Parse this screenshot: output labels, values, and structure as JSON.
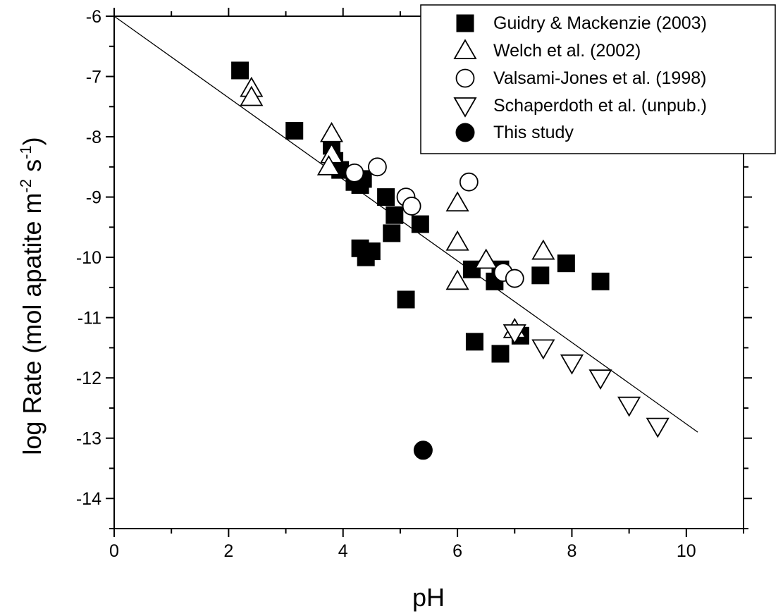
{
  "chart_data": {
    "type": "scatter",
    "title": "",
    "xlabel": "pH",
    "ylabel_parts": [
      "log Rate (mol apatite m",
      "-2",
      " s",
      "-1",
      ")"
    ],
    "xlim": [
      0,
      11
    ],
    "ylim": [
      -14.5,
      -6
    ],
    "x_ticks": [
      0,
      2,
      4,
      6,
      8,
      10
    ],
    "x_tick_labels": [
      "0",
      "2",
      "4",
      "6",
      "8",
      "10"
    ],
    "y_ticks": [
      -6,
      -7,
      -8,
      -9,
      -10,
      -11,
      -12,
      -13,
      -14
    ],
    "y_tick_labels": [
      "-6",
      "-7",
      "-8",
      "-9",
      "-10",
      "-11",
      "-12",
      "-13",
      "-14"
    ],
    "grid": false,
    "legend_position": "top-right",
    "series": [
      {
        "name": "Guidry & Mackenzie (2003)",
        "marker": "filled-square",
        "color": "#000000",
        "points": [
          [
            2.2,
            -6.9
          ],
          [
            3.15,
            -7.9
          ],
          [
            3.8,
            -8.15
          ],
          [
            3.85,
            -8.4
          ],
          [
            3.95,
            -8.55
          ],
          [
            4.2,
            -8.75
          ],
          [
            4.3,
            -8.8
          ],
          [
            4.35,
            -8.7
          ],
          [
            4.75,
            -9.0
          ],
          [
            4.9,
            -9.3
          ],
          [
            4.85,
            -9.6
          ],
          [
            4.3,
            -9.85
          ],
          [
            4.5,
            -9.9
          ],
          [
            4.4,
            -10.0
          ],
          [
            5.35,
            -9.45
          ],
          [
            5.1,
            -10.7
          ],
          [
            6.25,
            -10.2
          ],
          [
            6.65,
            -10.4
          ],
          [
            6.75,
            -10.2
          ],
          [
            7.45,
            -10.3
          ],
          [
            7.9,
            -10.1
          ],
          [
            8.5,
            -10.4
          ],
          [
            6.3,
            -11.4
          ],
          [
            6.75,
            -11.6
          ],
          [
            7.1,
            -11.3
          ]
        ]
      },
      {
        "name": "Welch et al. (2002)",
        "marker": "open-triangle-up",
        "color": "#000000",
        "points": [
          [
            2.4,
            -7.2
          ],
          [
            2.4,
            -7.35
          ],
          [
            3.8,
            -7.95
          ],
          [
            3.8,
            -8.3
          ],
          [
            3.75,
            -8.5
          ],
          [
            6.0,
            -9.1
          ],
          [
            6.0,
            -9.75
          ],
          [
            6.0,
            -10.4
          ],
          [
            6.5,
            -10.05
          ],
          [
            7.5,
            -9.9
          ],
          [
            7.0,
            -11.2
          ]
        ]
      },
      {
        "name": "Valsami-Jones et al. (1998)",
        "marker": "open-circle",
        "color": "#000000",
        "points": [
          [
            4.2,
            -8.6
          ],
          [
            4.6,
            -8.5
          ],
          [
            5.1,
            -9.0
          ],
          [
            5.2,
            -9.15
          ],
          [
            6.2,
            -8.75
          ],
          [
            6.8,
            -10.25
          ],
          [
            7.0,
            -10.35
          ]
        ]
      },
      {
        "name": "Schaperdoth et al. (unpub.)",
        "marker": "open-triangle-down",
        "color": "#000000",
        "points": [
          [
            7.0,
            -11.25
          ],
          [
            7.5,
            -11.5
          ],
          [
            8.0,
            -11.75
          ],
          [
            8.5,
            -12.0
          ],
          [
            9.0,
            -12.45
          ],
          [
            9.5,
            -12.8
          ]
        ]
      },
      {
        "name": "This study",
        "marker": "filled-circle",
        "color": "#000000",
        "points": [
          [
            5.4,
            -13.2
          ]
        ]
      }
    ],
    "trendline": {
      "x": [
        0,
        10.2
      ],
      "y": [
        -6.0,
        -12.9
      ],
      "color": "#000000"
    }
  }
}
